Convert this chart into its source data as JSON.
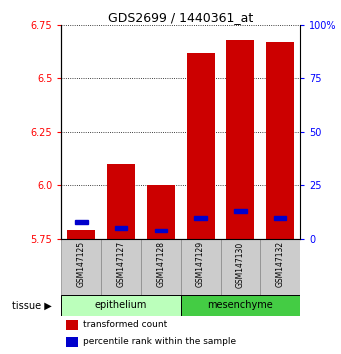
{
  "title": "GDS2699 / 1440361_at",
  "samples": [
    "GSM147125",
    "GSM147127",
    "GSM147128",
    "GSM147129",
    "GSM147130",
    "GSM147132"
  ],
  "red_values": [
    5.79,
    6.1,
    6.0,
    6.62,
    6.68,
    6.67
  ],
  "blue_percentiles": [
    8,
    5,
    4,
    10,
    13,
    10
  ],
  "ylim_left": [
    5.75,
    6.75
  ],
  "ylim_right": [
    0,
    100
  ],
  "yticks_left": [
    5.75,
    6.0,
    6.25,
    6.5,
    6.75
  ],
  "yticks_right": [
    0,
    25,
    50,
    75,
    100
  ],
  "ytick_labels_right": [
    "0",
    "25",
    "50",
    "75",
    "100%"
  ],
  "group1_label": "epithelium",
  "group2_label": "mesenchyme",
  "group1_color": "#bbffbb",
  "group2_color": "#44cc44",
  "bar_color": "#cc0000",
  "blue_color": "#0000cc",
  "baseline": 5.75,
  "bar_width": 0.7,
  "tissue_label": "tissue",
  "legend1": "transformed count",
  "legend2": "percentile rank within the sample",
  "n_group1": 3,
  "n_group2": 3
}
